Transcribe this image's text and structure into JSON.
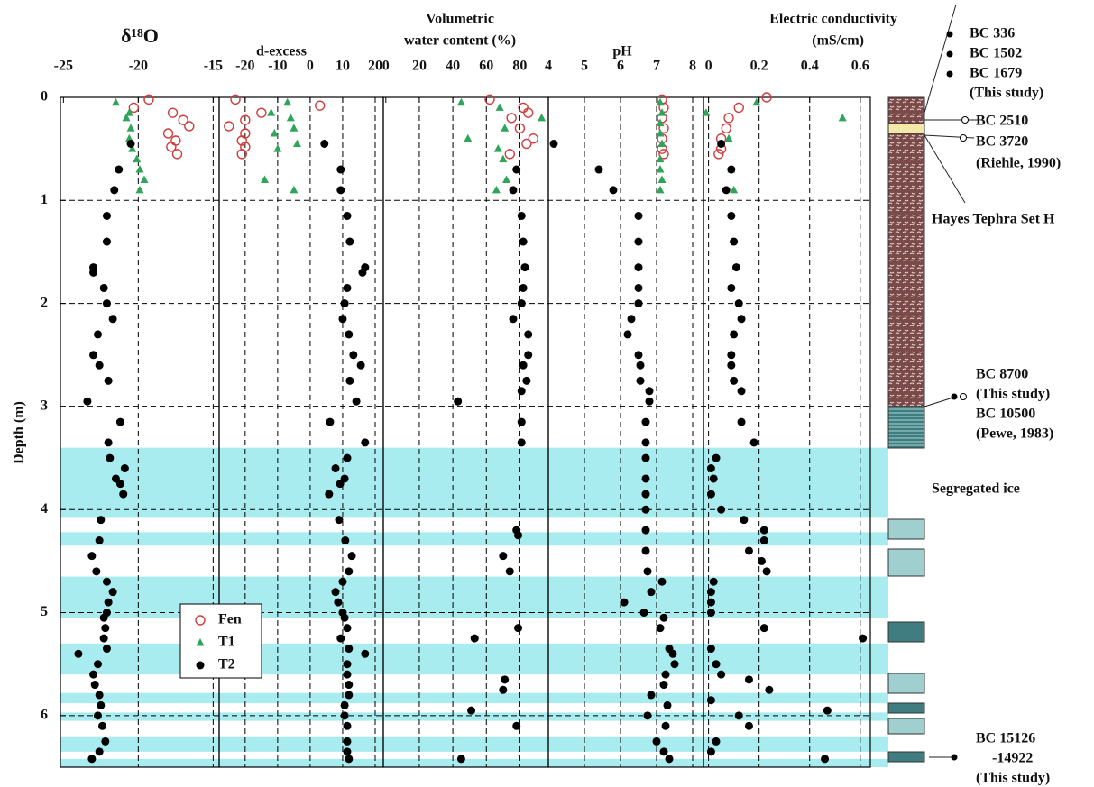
{
  "chart_data": [
    {
      "type": "scatter",
      "title": [
        "δ¹⁸O"
      ],
      "xlim": [
        -25.2,
        -14.6
      ],
      "xticks": [
        -25,
        -20,
        -15
      ],
      "ylabel": "Depth (m)",
      "ylim": [
        0,
        6.5
      ],
      "yticks": [
        0,
        1,
        2,
        3,
        4,
        5,
        6
      ],
      "grid": true,
      "legend": "lower right",
      "bands": [
        [
          3.4,
          4.08
        ],
        [
          4.22,
          4.35
        ],
        [
          4.65,
          5.05
        ],
        [
          5.3,
          5.6
        ],
        [
          5.78,
          5.88
        ],
        [
          5.97,
          6.05
        ],
        [
          6.2,
          6.35
        ],
        [
          6.42,
          6.5
        ]
      ],
      "series": [
        {
          "name": "Fen",
          "color": "#d23c3c",
          "marker": "open-circle",
          "depth": [
            0.02,
            0.1,
            0.15,
            0.22,
            0.28,
            0.35,
            0.42,
            0.48,
            0.55
          ],
          "values": [
            -19.3,
            -20.3,
            -17.7,
            -17.0,
            -16.6,
            -18.0,
            -17.5,
            -17.8,
            -17.4
          ]
        },
        {
          "name": "T1",
          "color": "#2fa55a",
          "marker": "triangle",
          "depth": [
            0.05,
            0.15,
            0.2,
            0.3,
            0.4,
            0.5,
            0.6,
            0.7,
            0.8,
            0.9
          ],
          "values": [
            -21.5,
            -20.6,
            -20.8,
            -20.5,
            -20.6,
            -20.4,
            -20.1,
            -19.9,
            -19.6,
            -19.9
          ]
        },
        {
          "name": "T2",
          "color": "#000000",
          "marker": "circle",
          "depth": [
            0.45,
            0.7,
            0.9,
            1.15,
            1.4,
            1.65,
            1.7,
            1.85,
            2.0,
            2.15,
            2.3,
            2.5,
            2.6,
            2.75,
            2.95,
            3.15,
            3.35,
            3.5,
            3.6,
            3.7,
            3.75,
            3.85,
            4.1,
            4.3,
            4.45,
            4.6,
            4.7,
            4.8,
            4.9,
            5.0,
            5.05,
            5.15,
            5.25,
            5.35,
            5.4,
            5.5,
            5.6,
            5.7,
            5.8,
            5.9,
            6.0,
            6.1,
            6.25,
            6.35,
            6.42
          ],
          "values": [
            -20.5,
            -21.3,
            -21.6,
            -22.1,
            -22.1,
            -23.0,
            -23.0,
            -22.3,
            -22.1,
            -21.7,
            -22.7,
            -23.0,
            -22.6,
            -22.0,
            -23.4,
            -21.2,
            -22.0,
            -21.9,
            -20.9,
            -21.5,
            -21.2,
            -21.0,
            -22.5,
            -22.6,
            -23.1,
            -22.8,
            -22.1,
            -21.7,
            -22.0,
            -22.1,
            -22.3,
            -22.2,
            -22.3,
            -22.1,
            -24.0,
            -22.7,
            -23.0,
            -22.9,
            -22.6,
            -22.5,
            -22.7,
            -22.4,
            -22.2,
            -22.6,
            -23.1
          ]
        }
      ]
    },
    {
      "type": "scatter",
      "title": [
        "d-excess"
      ],
      "xlim": [
        -28,
        22.5
      ],
      "xticks": [
        -20,
        -10,
        0,
        10,
        20
      ],
      "grid": true,
      "series": [
        {
          "name": "Fen",
          "color": "#d23c3c",
          "marker": "open-circle",
          "depth": [
            0.02,
            0.08,
            0.15,
            0.22,
            0.28,
            0.35,
            0.42,
            0.48,
            0.55
          ],
          "values": [
            -23,
            3,
            -15,
            -20,
            -25,
            -20,
            -21,
            -20,
            -21
          ]
        },
        {
          "name": "T1",
          "color": "#2fa55a",
          "marker": "triangle",
          "depth": [
            0.05,
            0.15,
            0.2,
            0.3,
            0.35,
            0.45,
            0.5,
            0.8,
            0.9
          ],
          "values": [
            -7,
            -12,
            -6,
            -5,
            -11,
            -4,
            -10,
            -14,
            -5
          ]
        },
        {
          "name": "T2",
          "color": "#000000",
          "marker": "circle",
          "depth": [
            0.45,
            0.7,
            0.9,
            1.15,
            1.4,
            1.65,
            1.7,
            1.85,
            2.0,
            2.15,
            2.3,
            2.5,
            2.6,
            2.75,
            2.95,
            3.15,
            3.35,
            3.5,
            3.6,
            3.7,
            3.75,
            3.85,
            4.1,
            4.3,
            4.45,
            4.6,
            4.7,
            4.8,
            4.9,
            5.0,
            5.05,
            5.15,
            5.25,
            5.35,
            5.4,
            5.5,
            5.6,
            5.7,
            5.8,
            5.9,
            6.0,
            6.1,
            6.25,
            6.35,
            6.42
          ],
          "values": [
            4.4,
            9.4,
            9.4,
            11.4,
            12.2,
            16.9,
            16.1,
            11.4,
            10.6,
            10,
            11.9,
            13.3,
            15.6,
            12.2,
            14.2,
            6.1,
            16.9,
            11.4,
            7.8,
            10.6,
            9.2,
            5.8,
            8.9,
            10.8,
            12.8,
            11.9,
            10,
            7.8,
            8.6,
            10,
            10.6,
            11.4,
            9.4,
            11.9,
            16.9,
            11.4,
            11.4,
            11.9,
            11.9,
            10.6,
            10.6,
            11.4,
            11.4,
            11.4,
            11.9
          ]
        }
      ]
    },
    {
      "type": "scatter",
      "title": [
        "Volumetric",
        "water content (%)"
      ],
      "xlim": [
        -1.5,
        97
      ],
      "xticks": [
        0,
        20,
        40,
        60,
        80
      ],
      "grid": true,
      "series": [
        {
          "name": "Fen",
          "color": "#d23c3c",
          "marker": "open-circle",
          "depth": [
            0.02,
            0.1,
            0.15,
            0.2,
            0.3,
            0.4,
            0.45,
            0.55
          ],
          "values": [
            62,
            82,
            85,
            75,
            80,
            88,
            84,
            74
          ]
        },
        {
          "name": "T1",
          "color": "#2fa55a",
          "marker": "triangle",
          "depth": [
            0.05,
            0.1,
            0.2,
            0.3,
            0.4,
            0.5,
            0.6,
            0.8,
            0.9
          ],
          "values": [
            45,
            68,
            93,
            71,
            49,
            67,
            70,
            72,
            66
          ]
        },
        {
          "name": "T2",
          "color": "#000000",
          "marker": "circle",
          "depth": [
            0.7,
            0.9,
            1.15,
            1.4,
            1.65,
            1.85,
            2.0,
            2.15,
            2.3,
            2.5,
            2.6,
            2.75,
            2.85,
            2.95,
            3.15,
            3.35,
            4.2,
            4.25,
            4.45,
            4.6,
            5.15,
            5.25,
            5.65,
            5.75,
            5.95,
            6.1,
            6.42
          ],
          "values": [
            78,
            76,
            81,
            82,
            83,
            82,
            81,
            76,
            85,
            85,
            82,
            84,
            81,
            43,
            81,
            81,
            78,
            79,
            70,
            74,
            79,
            53,
            71,
            70,
            51,
            78,
            45
          ]
        }
      ]
    },
    {
      "type": "scatter",
      "title": [
        "pH"
      ],
      "xlim": [
        4,
        8.3
      ],
      "xticks": [
        4,
        5,
        6,
        7,
        8
      ],
      "grid": true,
      "series": [
        {
          "name": "Fen",
          "color": "#d23c3c",
          "marker": "open-circle",
          "depth": [
            0.02,
            0.1,
            0.2,
            0.3,
            0.4,
            0.5,
            0.55
          ],
          "values": [
            7.15,
            7.2,
            7.15,
            7.2,
            7.15,
            7.15,
            7.2
          ]
        },
        {
          "name": "T1",
          "color": "#2fa55a",
          "marker": "triangle",
          "depth": [
            0.05,
            0.15,
            0.25,
            0.35,
            0.45,
            0.6,
            0.7,
            0.8,
            0.9
          ],
          "values": [
            7.1,
            7.15,
            7.1,
            7.1,
            7.15,
            7.1,
            7.1,
            7.15,
            7.1
          ]
        },
        {
          "name": "T2",
          "color": "#000000",
          "marker": "circle",
          "depth": [
            0.45,
            0.7,
            0.9,
            1.15,
            1.4,
            1.65,
            1.85,
            2.0,
            2.15,
            2.3,
            2.5,
            2.6,
            2.75,
            2.85,
            2.95,
            3.15,
            3.35,
            3.5,
            3.7,
            3.85,
            4.0,
            4.2,
            4.4,
            4.6,
            4.7,
            4.8,
            4.9,
            5.0,
            5.05,
            5.15,
            5.35,
            5.4,
            5.5,
            5.6,
            5.7,
            5.8,
            5.9,
            6.0,
            6.1,
            6.25,
            6.35,
            6.42
          ],
          "values": [
            4.15,
            5.4,
            5.8,
            6.5,
            6.5,
            6.5,
            6.5,
            6.5,
            6.3,
            6.2,
            6.5,
            6.55,
            6.55,
            6.8,
            6.8,
            6.7,
            6.7,
            6.7,
            6.7,
            6.7,
            6.7,
            6.7,
            6.7,
            6.75,
            7.15,
            6.85,
            6.1,
            6.65,
            7.2,
            7.1,
            7.35,
            7.45,
            7.5,
            7.25,
            7.2,
            6.85,
            7.3,
            6.75,
            7.25,
            7.0,
            7.2,
            7.35
          ]
        }
      ]
    },
    {
      "type": "scatter",
      "title": [
        "Electric conductivity",
        "(mS/cm)"
      ],
      "xlim": [
        -0.02,
        0.64
      ],
      "xticks": [
        0,
        0.2,
        0.4,
        0.6
      ],
      "grid": true,
      "series": [
        {
          "name": "Fen",
          "color": "#d23c3c",
          "marker": "open-circle",
          "depth": [
            0.0,
            0.1,
            0.2,
            0.3,
            0.4,
            0.5,
            0.55
          ],
          "values": [
            0.23,
            0.12,
            0.08,
            0.07,
            0.05,
            0.05,
            0.04
          ]
        },
        {
          "name": "T1",
          "color": "#2fa55a",
          "marker": "triangle",
          "depth": [
            0.05,
            0.15,
            0.2,
            0.4,
            0.7,
            0.9
          ],
          "values": [
            0.19,
            -0.01,
            0.53,
            0.08,
            0.09,
            0.1
          ]
        },
        {
          "name": "T2",
          "color": "#000000",
          "marker": "circle",
          "depth": [
            0.45,
            0.7,
            0.9,
            1.15,
            1.4,
            1.65,
            1.85,
            2.0,
            2.15,
            2.3,
            2.5,
            2.6,
            2.75,
            2.85,
            3.15,
            3.35,
            3.5,
            3.6,
            3.7,
            3.85,
            4.0,
            4.1,
            4.2,
            4.3,
            4.4,
            4.5,
            4.6,
            4.7,
            4.8,
            4.9,
            5.0,
            5.15,
            5.25,
            5.35,
            5.5,
            5.6,
            5.65,
            5.75,
            5.85,
            5.95,
            6.0,
            6.1,
            6.25,
            6.35,
            6.42
          ],
          "values": [
            0.05,
            0.09,
            0.07,
            0.09,
            0.1,
            0.11,
            0.09,
            0.12,
            0.13,
            0.1,
            0.09,
            0.09,
            0.1,
            0.13,
            0.13,
            0.18,
            0.03,
            0.01,
            0.02,
            0.01,
            0.05,
            0.14,
            0.22,
            0.22,
            0.16,
            0.21,
            0.23,
            0.02,
            0.01,
            0.01,
            0.01,
            0.22,
            0.61,
            0.01,
            0.03,
            0.05,
            0.16,
            0.24,
            0.01,
            0.47,
            0.12,
            0.16,
            0.03,
            0.01,
            0.46
          ]
        }
      ]
    }
  ],
  "column_labels": [
    "BC  336",
    "BC 1502",
    "BC 1679",
    "(This study)",
    "BC 2510",
    "BC 3720",
    "(Riehle, 1990)",
    "Hayes Tephra Set H",
    "BC 8700",
    "(This study)",
    "BC 10500",
    "(Pewe, 1983)",
    "Segregated ice",
    "BC 15126",
    "-14922",
    "(This study)"
  ]
}
